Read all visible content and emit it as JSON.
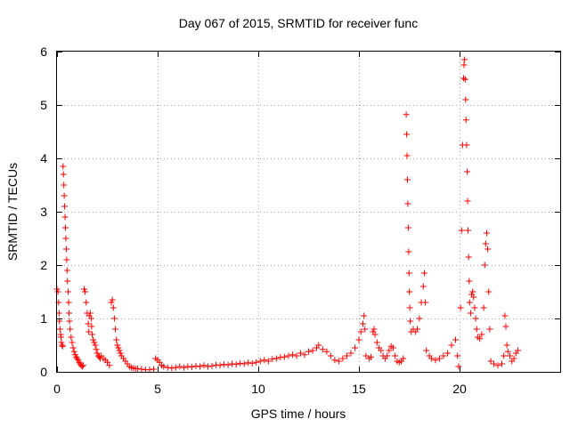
{
  "chart_data": {
    "type": "scatter",
    "title": "Day 067 of 2015, SRMTID for receiver func",
    "xlabel": "GPS time / hours",
    "ylabel": "SRMTID / TECUs",
    "xlim": [
      0,
      25
    ],
    "ylim": [
      0,
      6
    ],
    "xticks": [
      0,
      5,
      10,
      15,
      20
    ],
    "xtick_labels": [
      "0",
      "5",
      "10",
      "15",
      "20"
    ],
    "yticks": [
      0,
      1,
      2,
      3,
      4,
      5,
      6
    ],
    "ytick_labels": [
      "0",
      "1",
      "2",
      "3",
      "4",
      "5",
      "6"
    ],
    "grid": true,
    "marker": "+",
    "color": "#ff0000",
    "series": [
      {
        "name": "SRMTID",
        "points": [
          [
            0.0,
            1.55
          ],
          [
            0.05,
            1.5
          ],
          [
            0.08,
            1.3
          ],
          [
            0.1,
            1.1
          ],
          [
            0.12,
            0.95
          ],
          [
            0.15,
            0.8
          ],
          [
            0.18,
            0.7
          ],
          [
            0.2,
            0.65
          ],
          [
            0.22,
            0.55
          ],
          [
            0.25,
            0.5
          ],
          [
            0.28,
            0.48
          ],
          [
            0.3,
            3.85
          ],
          [
            0.32,
            3.7
          ],
          [
            0.34,
            3.5
          ],
          [
            0.36,
            3.3
          ],
          [
            0.38,
            3.1
          ],
          [
            0.4,
            2.9
          ],
          [
            0.42,
            2.7
          ],
          [
            0.44,
            2.5
          ],
          [
            0.46,
            2.3
          ],
          [
            0.48,
            2.1
          ],
          [
            0.5,
            1.9
          ],
          [
            0.52,
            1.7
          ],
          [
            0.55,
            1.5
          ],
          [
            0.58,
            1.3
          ],
          [
            0.6,
            1.1
          ],
          [
            0.62,
            0.95
          ],
          [
            0.65,
            0.8
          ],
          [
            0.7,
            0.65
          ],
          [
            0.75,
            0.55
          ],
          [
            0.8,
            0.45
          ],
          [
            0.85,
            0.38
          ],
          [
            0.9,
            0.32
          ],
          [
            0.95,
            0.28
          ],
          [
            1.0,
            0.25
          ],
          [
            1.05,
            0.22
          ],
          [
            1.1,
            0.18
          ],
          [
            1.15,
            0.15
          ],
          [
            1.2,
            0.12
          ],
          [
            1.25,
            0.1
          ],
          [
            1.3,
            0.12
          ],
          [
            1.35,
            1.55
          ],
          [
            1.4,
            1.5
          ],
          [
            1.45,
            1.3
          ],
          [
            1.5,
            1.1
          ],
          [
            1.55,
            0.9
          ],
          [
            1.58,
            0.75
          ],
          [
            1.6,
            1.05
          ],
          [
            1.65,
            1.1
          ],
          [
            1.7,
            1.0
          ],
          [
            1.72,
            0.85
          ],
          [
            1.75,
            0.7
          ],
          [
            1.8,
            0.6
          ],
          [
            1.85,
            0.55
          ],
          [
            1.9,
            0.5
          ],
          [
            1.95,
            0.42
          ],
          [
            2.0,
            0.35
          ],
          [
            2.05,
            0.3
          ],
          [
            2.1,
            0.28
          ],
          [
            2.15,
            0.25
          ],
          [
            2.2,
            0.3
          ],
          [
            2.3,
            0.25
          ],
          [
            2.4,
            0.22
          ],
          [
            2.5,
            0.18
          ],
          [
            2.6,
            0.12
          ],
          [
            2.7,
            1.3
          ],
          [
            2.75,
            1.35
          ],
          [
            2.8,
            1.2
          ],
          [
            2.85,
            1.0
          ],
          [
            2.9,
            0.8
          ],
          [
            2.95,
            0.6
          ],
          [
            3.0,
            0.5
          ],
          [
            3.05,
            0.45
          ],
          [
            3.1,
            0.4
          ],
          [
            3.15,
            0.35
          ],
          [
            3.2,
            0.3
          ],
          [
            3.3,
            0.25
          ],
          [
            3.4,
            0.2
          ],
          [
            3.5,
            0.15
          ],
          [
            3.6,
            0.1
          ],
          [
            3.7,
            0.08
          ],
          [
            3.8,
            0.07
          ],
          [
            3.9,
            0.06
          ],
          [
            4.0,
            0.06
          ],
          [
            4.2,
            0.05
          ],
          [
            4.4,
            0.04
          ],
          [
            4.6,
            0.04
          ],
          [
            4.8,
            0.05
          ],
          [
            4.9,
            0.25
          ],
          [
            5.0,
            0.22
          ],
          [
            5.1,
            0.18
          ],
          [
            5.2,
            0.12
          ],
          [
            5.3,
            0.1
          ],
          [
            5.5,
            0.08
          ],
          [
            5.7,
            0.07
          ],
          [
            5.9,
            0.08
          ],
          [
            6.1,
            0.1
          ],
          [
            6.3,
            0.08
          ],
          [
            6.5,
            0.1
          ],
          [
            6.7,
            0.09
          ],
          [
            6.9,
            0.11
          ],
          [
            7.1,
            0.1
          ],
          [
            7.3,
            0.12
          ],
          [
            7.5,
            0.1
          ],
          [
            7.7,
            0.11
          ],
          [
            7.9,
            0.13
          ],
          [
            8.1,
            0.12
          ],
          [
            8.3,
            0.14
          ],
          [
            8.5,
            0.13
          ],
          [
            8.7,
            0.15
          ],
          [
            8.9,
            0.14
          ],
          [
            9.1,
            0.16
          ],
          [
            9.3,
            0.15
          ],
          [
            9.5,
            0.17
          ],
          [
            9.7,
            0.16
          ],
          [
            9.9,
            0.18
          ],
          [
            10.1,
            0.2
          ],
          [
            10.3,
            0.22
          ],
          [
            10.5,
            0.2
          ],
          [
            10.7,
            0.24
          ],
          [
            10.9,
            0.25
          ],
          [
            11.1,
            0.27
          ],
          [
            11.3,
            0.28
          ],
          [
            11.5,
            0.3
          ],
          [
            11.7,
            0.32
          ],
          [
            11.9,
            0.3
          ],
          [
            12.1,
            0.35
          ],
          [
            12.3,
            0.32
          ],
          [
            12.5,
            0.38
          ],
          [
            12.7,
            0.4
          ],
          [
            12.9,
            0.45
          ],
          [
            13.0,
            0.5
          ],
          [
            13.2,
            0.42
          ],
          [
            13.4,
            0.38
          ],
          [
            13.6,
            0.3
          ],
          [
            13.8,
            0.22
          ],
          [
            14.0,
            0.2
          ],
          [
            14.2,
            0.25
          ],
          [
            14.4,
            0.3
          ],
          [
            14.6,
            0.35
          ],
          [
            14.8,
            0.45
          ],
          [
            15.0,
            0.6
          ],
          [
            15.1,
            0.75
          ],
          [
            15.2,
            0.9
          ],
          [
            15.25,
            1.05
          ],
          [
            15.3,
            0.8
          ],
          [
            15.35,
            0.3
          ],
          [
            15.5,
            0.25
          ],
          [
            15.6,
            0.28
          ],
          [
            15.7,
            0.75
          ],
          [
            15.75,
            0.8
          ],
          [
            15.8,
            0.7
          ],
          [
            15.9,
            0.55
          ],
          [
            16.0,
            0.45
          ],
          [
            16.1,
            0.4
          ],
          [
            16.2,
            0.3
          ],
          [
            16.3,
            0.25
          ],
          [
            16.4,
            0.3
          ],
          [
            16.5,
            0.4
          ],
          [
            16.6,
            0.48
          ],
          [
            16.7,
            0.45
          ],
          [
            16.8,
            0.3
          ],
          [
            16.9,
            0.2
          ],
          [
            17.0,
            0.18
          ],
          [
            17.1,
            0.2
          ],
          [
            17.2,
            0.25
          ],
          [
            17.35,
            4.82
          ],
          [
            17.37,
            4.45
          ],
          [
            17.39,
            4.05
          ],
          [
            17.41,
            3.6
          ],
          [
            17.43,
            3.15
          ],
          [
            17.45,
            2.7
          ],
          [
            17.47,
            2.25
          ],
          [
            17.49,
            1.85
          ],
          [
            17.51,
            1.5
          ],
          [
            17.53,
            1.2
          ],
          [
            17.55,
            0.95
          ],
          [
            17.6,
            0.75
          ],
          [
            17.7,
            0.8
          ],
          [
            17.8,
            0.75
          ],
          [
            17.9,
            0.8
          ],
          [
            18.0,
            1.0
          ],
          [
            18.1,
            1.3
          ],
          [
            18.2,
            1.6
          ],
          [
            18.25,
            1.85
          ],
          [
            18.3,
            1.3
          ],
          [
            18.35,
            0.4
          ],
          [
            18.5,
            0.3
          ],
          [
            18.6,
            0.25
          ],
          [
            18.8,
            0.22
          ],
          [
            19.0,
            0.25
          ],
          [
            19.2,
            0.3
          ],
          [
            19.4,
            0.35
          ],
          [
            19.6,
            0.5
          ],
          [
            19.8,
            0.6
          ],
          [
            19.9,
            0.3
          ],
          [
            19.95,
            0.1
          ],
          [
            20.05,
            1.2
          ],
          [
            20.1,
            2.65
          ],
          [
            20.15,
            4.25
          ],
          [
            20.2,
            5.5
          ],
          [
            20.22,
            5.75
          ],
          [
            20.25,
            5.85
          ],
          [
            20.28,
            5.48
          ],
          [
            20.3,
            5.1
          ],
          [
            20.32,
            4.72
          ],
          [
            20.35,
            4.25
          ],
          [
            20.38,
            3.75
          ],
          [
            20.4,
            3.2
          ],
          [
            20.42,
            2.65
          ],
          [
            20.45,
            2.15
          ],
          [
            20.48,
            1.7
          ],
          [
            20.5,
            1.3
          ],
          [
            20.55,
            1.1
          ],
          [
            20.6,
            1.45
          ],
          [
            20.65,
            1.5
          ],
          [
            20.7,
            1.4
          ],
          [
            20.75,
            1.2
          ],
          [
            20.8,
            1.0
          ],
          [
            20.85,
            0.8
          ],
          [
            20.9,
            0.65
          ],
          [
            21.0,
            0.62
          ],
          [
            21.1,
            0.7
          ],
          [
            21.2,
            1.2
          ],
          [
            21.25,
            2.0
          ],
          [
            21.3,
            2.4
          ],
          [
            21.35,
            2.6
          ],
          [
            21.4,
            2.3
          ],
          [
            21.45,
            1.5
          ],
          [
            21.5,
            0.8
          ],
          [
            21.55,
            0.2
          ],
          [
            21.7,
            0.15
          ],
          [
            21.9,
            0.12
          ],
          [
            22.1,
            0.15
          ],
          [
            22.2,
            0.3
          ],
          [
            22.25,
            1.05
          ],
          [
            22.3,
            0.85
          ],
          [
            22.35,
            0.5
          ],
          [
            22.4,
            0.38
          ],
          [
            22.5,
            0.3
          ],
          [
            22.6,
            0.2
          ],
          [
            22.7,
            0.25
          ],
          [
            22.8,
            0.35
          ],
          [
            22.9,
            0.4
          ]
        ]
      }
    ]
  }
}
